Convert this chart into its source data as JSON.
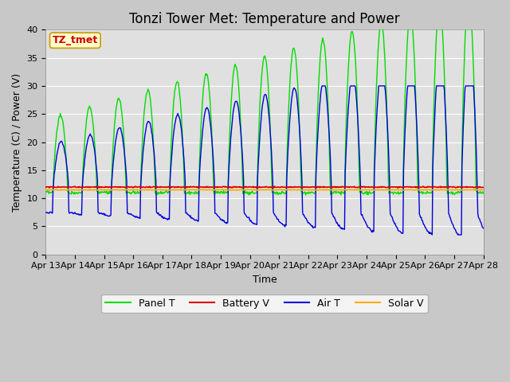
{
  "title": "Tonzi Tower Met: Temperature and Power",
  "xlabel": "Time",
  "ylabel": "Temperature (C) / Power (V)",
  "ylim": [
    0,
    40
  ],
  "x_tick_labels": [
    "Apr 13",
    "Apr 14",
    "Apr 15",
    "Apr 16",
    "Apr 17",
    "Apr 18",
    "Apr 19",
    "Apr 20",
    "Apr 21",
    "Apr 22",
    "Apr 23",
    "Apr 24",
    "Apr 25",
    "Apr 26",
    "Apr 27",
    "Apr 28"
  ],
  "fig_bg_color": "#c8c8c8",
  "plot_bg_color": "#e0e0e0",
  "panel_t_color": "#00dd00",
  "battery_v_color": "#dd0000",
  "air_t_color": "#0000dd",
  "solar_v_color": "#ffaa00",
  "annotation_text": "TZ_tmet",
  "annotation_color": "#cc0000",
  "annotation_bg": "#ffffcc",
  "legend_entries": [
    "Panel T",
    "Battery V",
    "Air T",
    "Solar V"
  ],
  "title_fontsize": 12,
  "axis_fontsize": 9,
  "tick_fontsize": 8,
  "legend_fontsize": 9
}
